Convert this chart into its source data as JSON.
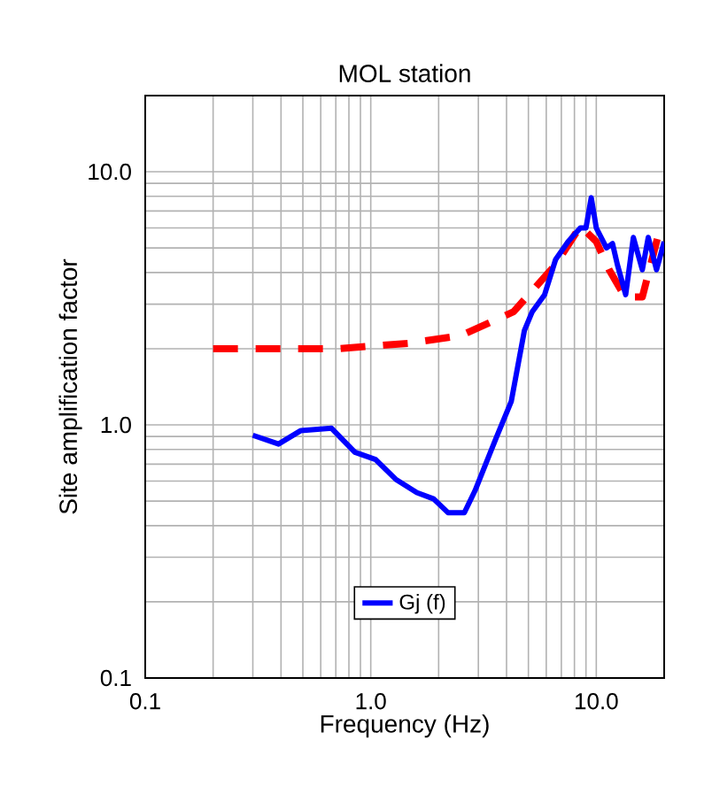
{
  "chart_data": {
    "type": "line",
    "title": "MOL station",
    "xlabel": "Frequency (Hz)",
    "ylabel": "Site amplification factor",
    "log": "xy",
    "grid": true,
    "legend": "bottom",
    "marker": "none",
    "xlim": [
      0.1,
      20
    ],
    "ylim": [
      0.1,
      20
    ],
    "xticks": [
      0.1,
      {
        "value": 1,
        "label": "1.0"
      },
      {
        "value": 10,
        "label": "10.0"
      }
    ],
    "yticks": [
      0.1,
      {
        "value": 1,
        "label": "1.0"
      },
      {
        "value": 10,
        "label": "10.0"
      }
    ],
    "series": [
      {
        "color": "#ff0000",
        "line_style": "dashed",
        "x": [
          0.2,
          0.71,
          1.46,
          2.5,
          4.3,
          6.6,
          8.5,
          10,
          11.4,
          13.4,
          16,
          19
        ],
        "values": [
          2.0,
          2.0,
          2.1,
          2.25,
          2.8,
          4.3,
          6.1,
          5.3,
          4.1,
          3.2,
          3.2,
          5.8
        ]
      },
      {
        "name": "Gj (f)",
        "color": "#0000ff",
        "line_style": "solid",
        "x": [
          0.3,
          0.39,
          0.49,
          0.67,
          0.85,
          1.05,
          1.29,
          1.6,
          1.9,
          2.2,
          2.6,
          2.9,
          3.6,
          4.2,
          4.8,
          5.2,
          5.9,
          6.6,
          7.5,
          8.5,
          9.0,
          9.5,
          10,
          11.1,
          11.8,
          12.4,
          13.5,
          14.6,
          16,
          17,
          18.5,
          20
        ],
        "values": [
          0.91,
          0.84,
          0.95,
          0.97,
          0.78,
          0.73,
          0.61,
          0.54,
          0.51,
          0.45,
          0.45,
          0.55,
          0.89,
          1.24,
          2.36,
          2.8,
          3.27,
          4.5,
          5.3,
          6.0,
          6.0,
          7.9,
          6.0,
          5.0,
          5.2,
          4.3,
          3.27,
          5.5,
          4.1,
          5.5,
          4.1,
          5.3
        ]
      }
    ]
  }
}
